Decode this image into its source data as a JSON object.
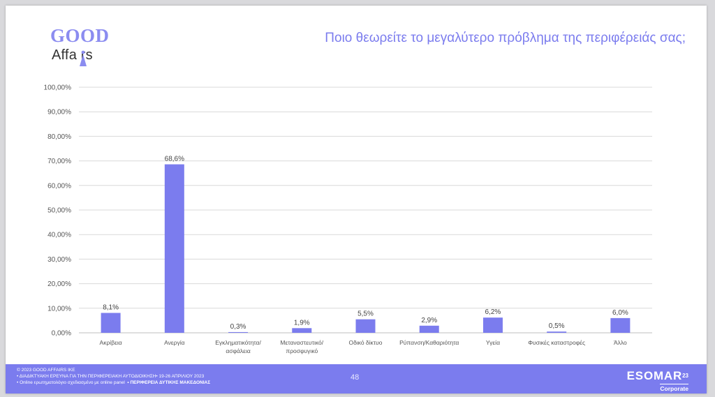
{
  "brand": {
    "logo_line1": "GOOD",
    "logo_line2": "Affa rs"
  },
  "title": "Ποιο θεωρείτε το μεγαλύτερο πρόβλημα της περιφέρειάς σας;",
  "chart_data": {
    "type": "bar",
    "title": "",
    "categories": [
      [
        "Ακρίβεια"
      ],
      [
        "Ανεργία"
      ],
      [
        "Εγκληματικότητα/",
        "ασφάλεια"
      ],
      [
        "Μεταναστευτικό/",
        "προσφυγικό"
      ],
      [
        "Οδικό δίκτυο"
      ],
      [
        "Ρύπανση/Καθαριότητα"
      ],
      [
        "Υγεία"
      ],
      [
        "Φυσικές καταστροφές"
      ],
      [
        "Άλλο"
      ]
    ],
    "values": [
      8.1,
      68.6,
      0.3,
      1.9,
      5.5,
      2.9,
      6.2,
      0.5,
      6.0
    ],
    "data_labels": [
      "8,1%",
      "68,6%",
      "0,3%",
      "1,9%",
      "5,5%",
      "2,9%",
      "6,2%",
      "0,5%",
      "6,0%"
    ],
    "ylim": [
      0,
      100
    ],
    "yticks": [
      0,
      10,
      20,
      30,
      40,
      50,
      60,
      70,
      80,
      90,
      100
    ],
    "ytick_labels": [
      "0,00%",
      "10,00%",
      "20,00%",
      "30,00%",
      "40,00%",
      "50,00%",
      "60,00%",
      "70,00%",
      "80,00%",
      "90,00%",
      "100,00%"
    ],
    "xlabel": "",
    "ylabel": "",
    "grid": true,
    "legend": "none",
    "bar_color": "#7b7cee"
  },
  "footer": {
    "line1": "© 2023 GOOD AFFAIRS IKE",
    "line2": "• ΔΙΑΔΙΚΤΥΑΚΗ ΕΡΕΥΝΑ  ΓΙΑ ΤΗΝ ΠΕΡΙΦΕΡΕΙΑΚΗ ΑΥΤΟΔΙΟΙΚΗΣΗ• 19-26 ΑΠΡΙΛΙΟΥ 2023",
    "line3_a": "• Online ερωτηματολόγιο σχεδιασμένο με online panel",
    "line3_b": "• ΠΕΡΙΦΕΡΕΙΑ ΔΥΤΙΚΗΣ ΜΑΚΕΔΟΝΙΑΣ",
    "page_number": "48",
    "esomar_name": "ESOMAR",
    "esomar_sup": "23",
    "esomar_corp": "Corporate"
  },
  "colors": {
    "accent": "#7b7cee",
    "grid": "#d9d9d9"
  }
}
